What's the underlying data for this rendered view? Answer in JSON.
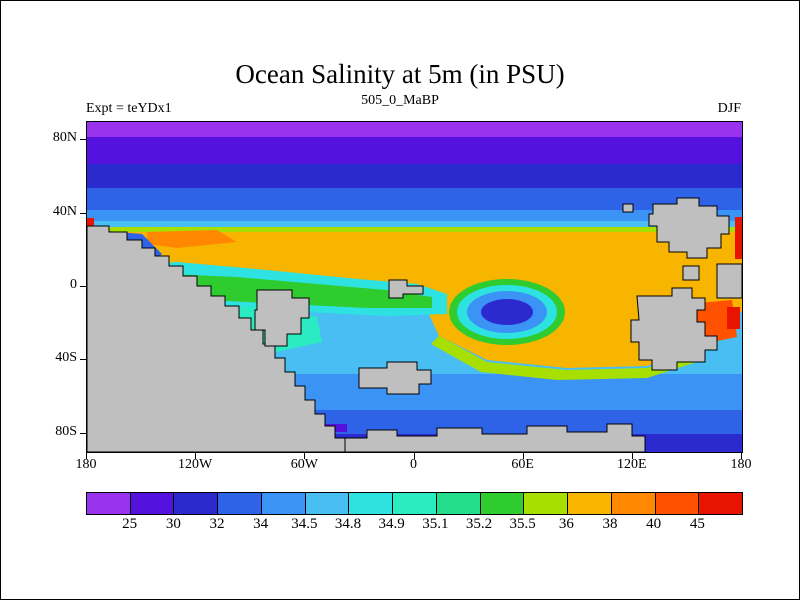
{
  "header": {
    "title": "Ocean Salinity at 5m (in PSU)",
    "subtitle": "505_0_MaBP",
    "left_label": "Expt = teYDx1",
    "right_label": "DJF"
  },
  "chart_data": {
    "type": "heatmap",
    "title": "Ocean Salinity at 5m (in PSU)",
    "subtitle": "505_0_MaBP",
    "experiment": "Expt = teYDx1",
    "season": "DJF",
    "units": "PSU",
    "x_axis": {
      "ticks": [
        {
          "label": "180",
          "lon": -180
        },
        {
          "label": "120W",
          "lon": -120
        },
        {
          "label": "60W",
          "lon": -60
        },
        {
          "label": "0",
          "lon": 0
        },
        {
          "label": "60E",
          "lon": 60
        },
        {
          "label": "120E",
          "lon": 120
        },
        {
          "label": "180",
          "lon": 180
        }
      ]
    },
    "y_axis": {
      "ticks": [
        {
          "label": "80N",
          "lat": 80
        },
        {
          "label": "40N",
          "lat": 40
        },
        {
          "label": "0",
          "lat": 0
        },
        {
          "label": "40S",
          "lat": -40
        },
        {
          "label": "80S",
          "lat": -80
        }
      ]
    },
    "colorbar": {
      "levels": [
        25,
        30,
        32,
        34,
        34.5,
        34.8,
        34.9,
        35.1,
        35.2,
        35.5,
        36,
        38,
        40,
        45
      ],
      "colors": [
        "#9933EE",
        "#5511DD",
        "#2A2ACF",
        "#2E63E8",
        "#3A93F5",
        "#49BEF2",
        "#2EE2E2",
        "#2BEBC3",
        "#23DC8C",
        "#2FCC2F",
        "#A6DF00",
        "#F7B500",
        "#FF8800",
        "#FF5100",
        "#E81400"
      ]
    },
    "land_color": "#BFBFBF",
    "coastline_color": "#000000",
    "regions": [
      {
        "area": "polar cap 80N-90N",
        "salinity_psu": "below 25-30"
      },
      {
        "area": "subpolar band 60N-80N",
        "salinity_psu": "30-34"
      },
      {
        "area": "mid-latitude band 45N-60N",
        "salinity_psu": "34-34.8"
      },
      {
        "area": "northern subtropical gyre 25N-45N",
        "salinity_psu": "36-38"
      },
      {
        "area": "western and eastern boundary near 40N-20N",
        "salinity_psu": "40-45 and above"
      },
      {
        "area": "equatorial band west-central",
        "salinity_psu": "34.9-35.5"
      },
      {
        "area": "cyclonic fresh eddy near 60E 10S",
        "salinity_psu": "32-34"
      },
      {
        "area": "southern subtropical band 20S-40S east",
        "salinity_psu": "36-38"
      },
      {
        "area": "southern ocean 45S-65S",
        "salinity_psu": "34-34.8"
      },
      {
        "area": "near 80S coast",
        "salinity_psu": "25-34"
      }
    ]
  }
}
